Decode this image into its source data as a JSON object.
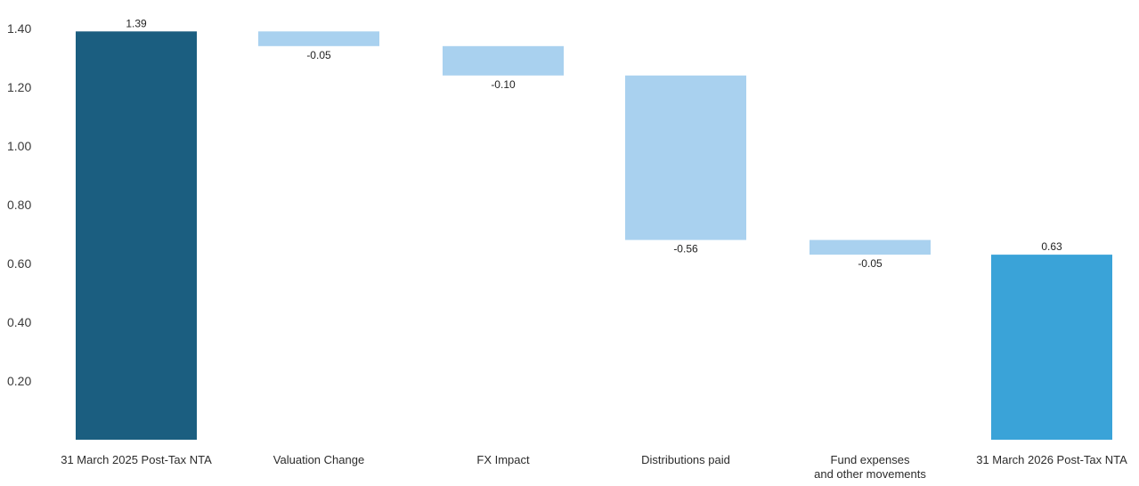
{
  "chart_data": {
    "type": "bar",
    "subtype": "waterfall",
    "ylim": [
      0,
      1.4
    ],
    "yticks": [
      "0.20",
      "0.40",
      "0.60",
      "0.80",
      "1.00",
      "1.20",
      "1.40"
    ],
    "grid": false,
    "legend": "none",
    "steps": [
      {
        "kind": "total",
        "value": 1.39,
        "label": "1.39",
        "category_lines": [
          "31 March 2025 Post-Tax NTA"
        ],
        "color": "#1b5e80"
      },
      {
        "kind": "change",
        "value": -0.05,
        "label": "-0.05",
        "category_lines": [
          "Valuation Change"
        ],
        "color": "#a9d1ef"
      },
      {
        "kind": "change",
        "value": -0.1,
        "label": "-0.10",
        "category_lines": [
          "FX Impact"
        ],
        "color": "#a9d1ef"
      },
      {
        "kind": "change",
        "value": -0.56,
        "label": "-0.56",
        "category_lines": [
          "Distributions paid"
        ],
        "color": "#a9d1ef"
      },
      {
        "kind": "change",
        "value": -0.05,
        "label": "-0.05",
        "category_lines": [
          "Fund expenses",
          "and other movements"
        ],
        "color": "#a9d1ef"
      },
      {
        "kind": "total",
        "value": 0.63,
        "label": "0.63",
        "category_lines": [
          "31 March 2026 Post-Tax NTA"
        ],
        "color": "#3aa3d8"
      }
    ]
  }
}
